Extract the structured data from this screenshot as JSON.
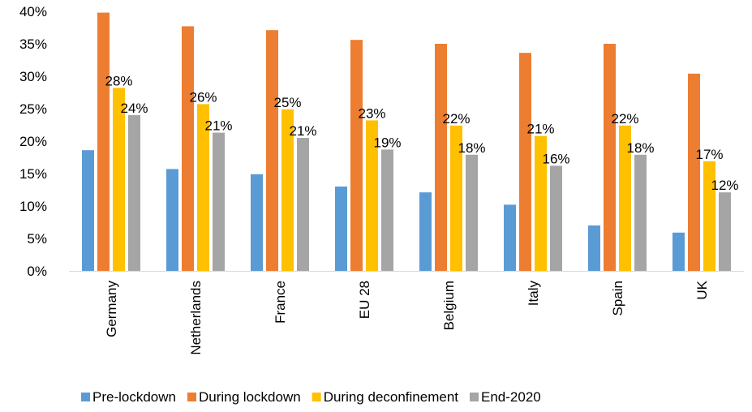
{
  "chart_data": {
    "type": "bar",
    "categories": [
      "Germany",
      "Netherlands",
      "France",
      "EU 28",
      "Belgium",
      "Italy",
      "Spain",
      "UK"
    ],
    "series": [
      {
        "name": "Pre-lockdown",
        "color": "#5B9BD5",
        "values": [
          18.6,
          15.7,
          14.9,
          13.0,
          12.1,
          10.2,
          7.0,
          5.9
        ]
      },
      {
        "name": "During lockdown",
        "color": "#ED7D31",
        "values": [
          39.8,
          37.7,
          37.1,
          35.6,
          35.0,
          33.6,
          35.0,
          30.4
        ]
      },
      {
        "name": "During deconfinement",
        "color": "#FFC000",
        "values": [
          28.2,
          25.7,
          24.9,
          23.2,
          22.4,
          20.8,
          22.4,
          16.9
        ],
        "labels": [
          "28%",
          "26%",
          "25%",
          "23%",
          "22%",
          "21%",
          "22%",
          "17%"
        ]
      },
      {
        "name": "End-2020",
        "color": "#A5A5A5",
        "values": [
          24.0,
          21.3,
          20.5,
          18.7,
          17.9,
          16.2,
          17.9,
          12.1
        ],
        "labels": [
          "24%",
          "21%",
          "21%",
          "19%",
          "18%",
          "16%",
          "18%",
          "12%"
        ]
      }
    ],
    "yticks": [
      "0%",
      "5%",
      "10%",
      "15%",
      "20%",
      "25%",
      "30%",
      "35%",
      "40%"
    ],
    "ylim": [
      0,
      40
    ],
    "legend_position": "bottom",
    "grid": false
  }
}
